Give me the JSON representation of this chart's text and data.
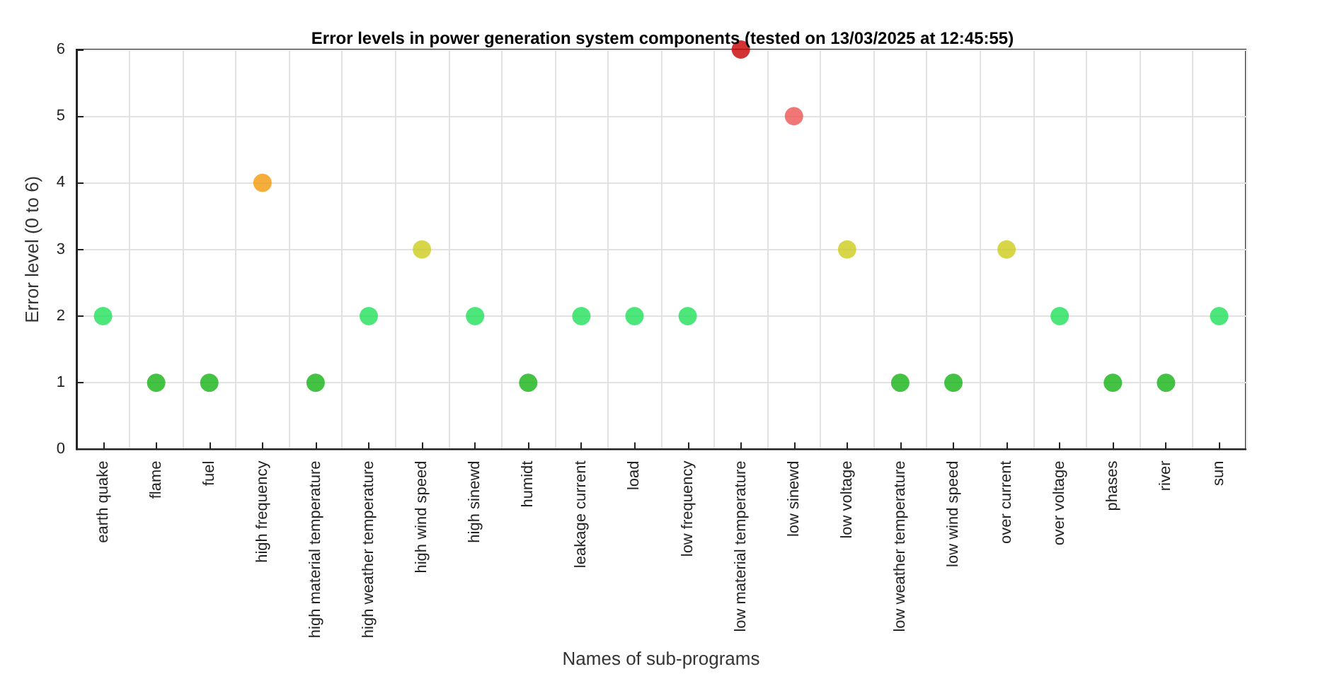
{
  "chart_data": {
    "type": "scatter",
    "title": "Error levels in power generation system components (tested on 13/03/2025 at 12:45:55)",
    "xlabel": "Names of sub-programs",
    "ylabel": "Error level (0 to 6)",
    "categories": [
      "earth quake",
      "flame",
      "fuel",
      "high frequency",
      "high material temperature",
      "high weather temperature",
      "high wind speed",
      "high sinewd",
      "humidt",
      "leakage current",
      "load",
      "low frequency",
      "low material temperature",
      "low sinewd",
      "low voltage",
      "low weather temperature",
      "low wind speed",
      "over current",
      "over voltage",
      "phases",
      "river",
      "sun"
    ],
    "values": [
      2,
      1,
      1,
      4,
      1,
      2,
      3,
      2,
      1,
      2,
      2,
      2,
      6,
      5,
      3,
      1,
      1,
      3,
      2,
      1,
      1,
      2
    ],
    "colors": [
      "#1fe05a",
      "#14b314",
      "#14b314",
      "#f29a0a",
      "#14b314",
      "#1fe05a",
      "#cccc1a",
      "#1fe05a",
      "#14b314",
      "#1fe05a",
      "#1fe05a",
      "#1fe05a",
      "#c80000",
      "#ee5555",
      "#cccc1a",
      "#14b314",
      "#14b314",
      "#cccc1a",
      "#1fe05a",
      "#14b314",
      "#14b314",
      "#1fe05a"
    ],
    "ylim": [
      0,
      6
    ],
    "yticks": [
      0,
      1,
      2,
      3,
      4,
      5,
      6
    ],
    "grid": true,
    "marker": "circle"
  }
}
